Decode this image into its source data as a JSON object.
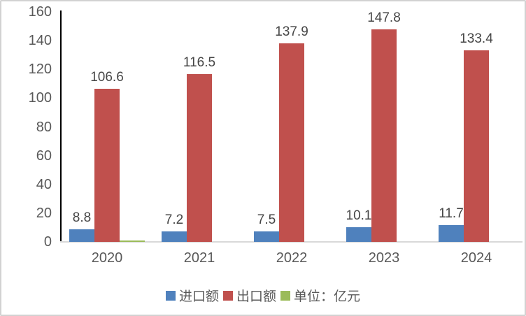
{
  "canvas": {
    "background": "#ffffff",
    "border_color": "#d2d2d2",
    "axis_line_color": "#000000",
    "baseline_color": "#d9d9d9",
    "tick_label_color": "#595959",
    "data_label_color": "#454545"
  },
  "chart_data": {
    "type": "bar",
    "title": "",
    "xlabel": "",
    "ylabel": "",
    "categories": [
      "2020",
      "2021",
      "2022",
      "2023",
      "2024"
    ],
    "series": [
      {
        "id": "imports",
        "name": "进口额",
        "color": "#4F81BD",
        "values": [
          8.8,
          7.2,
          7.5,
          10.1,
          11.7
        ],
        "labels_visible": true
      },
      {
        "id": "exports",
        "name": "出口额",
        "color": "#C0504D",
        "values": [
          106.6,
          116.5,
          137.9,
          147.8,
          133.4
        ],
        "labels_visible": true
      },
      {
        "id": "unit-note",
        "name": "单位：亿元",
        "color": "#9BBB59",
        "values": [
          1,
          0,
          0,
          0,
          0
        ],
        "labels_visible": false
      }
    ],
    "ylim": [
      0,
      160
    ],
    "yticks": [
      0,
      20,
      40,
      60,
      80,
      100,
      120,
      140,
      160
    ],
    "grid": false,
    "legend_position": "bottom"
  }
}
